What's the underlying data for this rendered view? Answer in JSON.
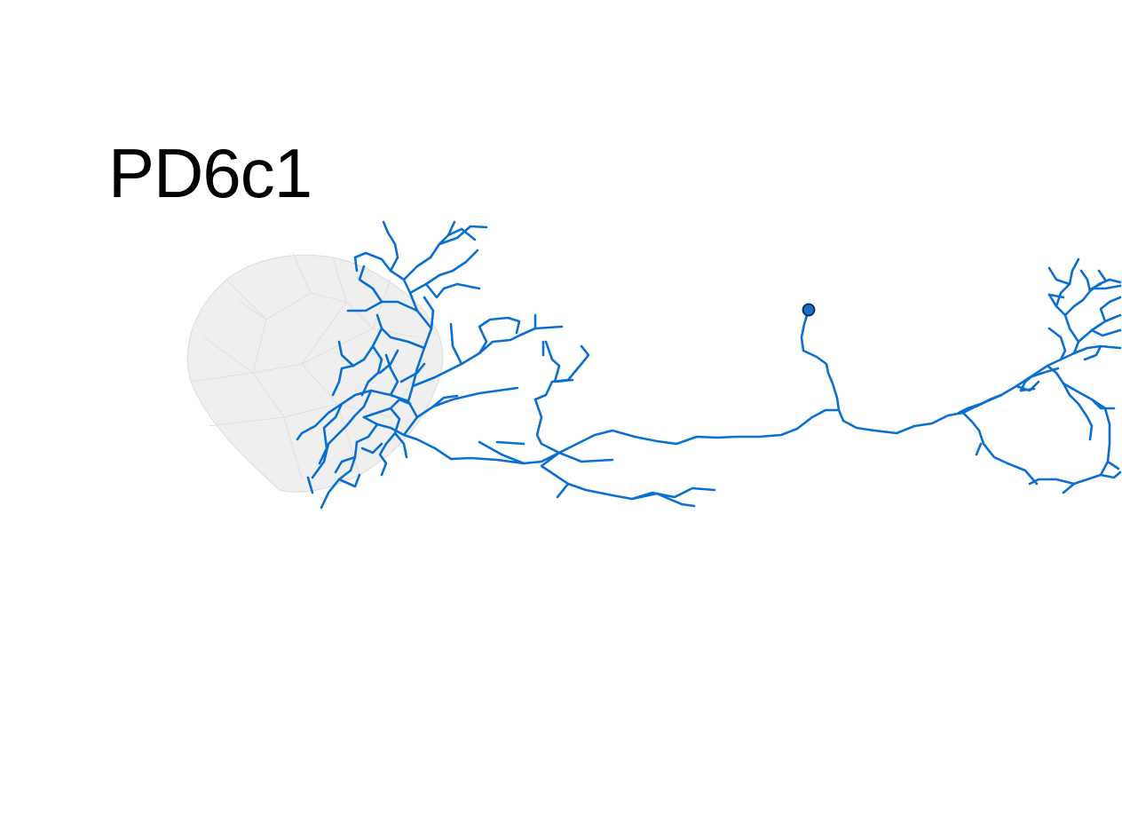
{
  "title": "PD6c1",
  "colors": {
    "neuron": "#0a6fd0",
    "soma_fill": "#1a6fc2",
    "soma_stroke": "#0a2a55",
    "mesh_fill": "#efefef",
    "mesh_stroke": "#dcdcdc",
    "background": "#ffffff"
  }
}
